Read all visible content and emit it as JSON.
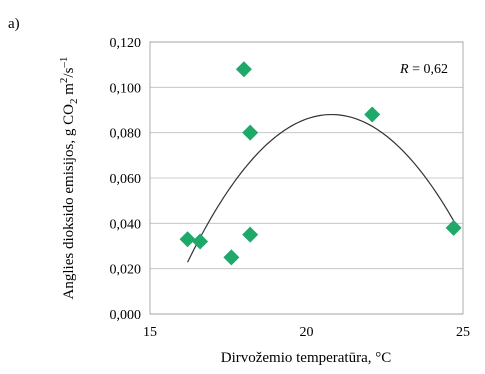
{
  "panel_label": "a)",
  "chart_data": {
    "type": "scatter",
    "xlabel": "Dirvožemio temperatūra, °C",
    "ylabel": {
      "prefix": "Anglies dioksido emisijos, g CO",
      "sub": "2",
      "middle": " m",
      "sup1": "2",
      "slash": "/s",
      "sup2": "–1"
    },
    "xlim": [
      15,
      25
    ],
    "ylim": [
      0,
      0.12
    ],
    "x_ticks": [
      15,
      20,
      25
    ],
    "x_tick_labels": [
      "15",
      "20",
      "25"
    ],
    "y_ticks": [
      0,
      0.02,
      0.04,
      0.06,
      0.08,
      0.1,
      0.12
    ],
    "y_tick_labels": [
      "0,000",
      "0,020",
      "0,040",
      "0,060",
      "0,080",
      "0,100",
      "0,120"
    ],
    "grid": "horizontal",
    "points": [
      {
        "x": 16.2,
        "y": 0.033
      },
      {
        "x": 16.6,
        "y": 0.032
      },
      {
        "x": 17.6,
        "y": 0.025
      },
      {
        "x": 18.0,
        "y": 0.108
      },
      {
        "x": 18.2,
        "y": 0.08
      },
      {
        "x": 18.2,
        "y": 0.035
      },
      {
        "x": 22.1,
        "y": 0.088
      },
      {
        "x": 24.7,
        "y": 0.038
      }
    ],
    "marker_color": "#1ea86a",
    "trend": {
      "type": "polynomial-2",
      "x_range": [
        16.2,
        24.7
      ],
      "peak_x": 20.8,
      "peak_y": 0.088,
      "curvature": 0.00308,
      "color": "#333333"
    },
    "annotation": {
      "var": "R",
      "text": " = 0,62"
    }
  }
}
